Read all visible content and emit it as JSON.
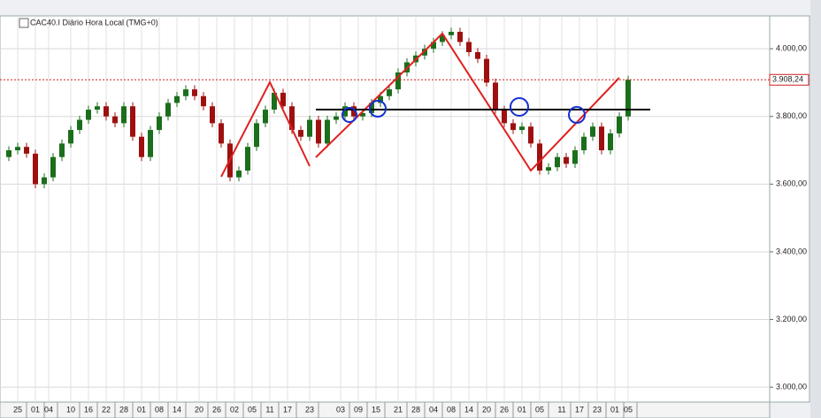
{
  "chart_data": {
    "type": "candlestick",
    "title": "CAC40.I Diário Hora Local (TMG+0)",
    "x": [
      1,
      3,
      5,
      7,
      9,
      11,
      13,
      15,
      17,
      19,
      21,
      23,
      25,
      27,
      29,
      31,
      33,
      35,
      37,
      39,
      41,
      43,
      45,
      47,
      49,
      51,
      53,
      55,
      57,
      59,
      61,
      63,
      65,
      67,
      69,
      71,
      73,
      75,
      77,
      79,
      81,
      83,
      85,
      87,
      89,
      91,
      93,
      95,
      97,
      99,
      101,
      103,
      105,
      107,
      109,
      111,
      113,
      115,
      117,
      119,
      121,
      123,
      125,
      127,
      129,
      131,
      133,
      135,
      137,
      139,
      141
    ],
    "candles": [
      [
        3680,
        3712,
        3668,
        3700
      ],
      [
        3700,
        3722,
        3688,
        3710
      ],
      [
        3710,
        3722,
        3678,
        3690
      ],
      [
        3690,
        3702,
        3588,
        3600
      ],
      [
        3600,
        3632,
        3588,
        3620
      ],
      [
        3620,
        3692,
        3608,
        3680
      ],
      [
        3680,
        3732,
        3668,
        3720
      ],
      [
        3720,
        3772,
        3708,
        3760
      ],
      [
        3760,
        3802,
        3748,
        3790
      ],
      [
        3790,
        3832,
        3778,
        3820
      ],
      [
        3820,
        3842,
        3808,
        3830
      ],
      [
        3830,
        3842,
        3788,
        3800
      ],
      [
        3800,
        3812,
        3768,
        3780
      ],
      [
        3780,
        3842,
        3768,
        3830
      ],
      [
        3830,
        3842,
        3728,
        3740
      ],
      [
        3740,
        3752,
        3668,
        3680
      ],
      [
        3680,
        3772,
        3668,
        3760
      ],
      [
        3760,
        3812,
        3748,
        3800
      ],
      [
        3800,
        3852,
        3788,
        3840
      ],
      [
        3840,
        3872,
        3828,
        3860
      ],
      [
        3860,
        3892,
        3848,
        3880
      ],
      [
        3880,
        3892,
        3848,
        3860
      ],
      [
        3860,
        3872,
        3818,
        3830
      ],
      [
        3830,
        3842,
        3768,
        3780
      ],
      [
        3780,
        3792,
        3708,
        3720
      ],
      [
        3720,
        3732,
        3608,
        3620
      ],
      [
        3620,
        3652,
        3608,
        3640
      ],
      [
        3640,
        3722,
        3628,
        3710
      ],
      [
        3710,
        3792,
        3698,
        3780
      ],
      [
        3780,
        3832,
        3768,
        3820
      ],
      [
        3820,
        3882,
        3808,
        3870
      ],
      [
        3870,
        3882,
        3818,
        3830
      ],
      [
        3830,
        3842,
        3748,
        3760
      ],
      [
        3760,
        3772,
        3728,
        3740
      ],
      [
        3740,
        3802,
        3728,
        3790
      ],
      [
        3790,
        3802,
        3708,
        3720
      ],
      [
        3720,
        3802,
        3708,
        3790
      ],
      [
        3790,
        3812,
        3778,
        3800
      ],
      [
        3800,
        3842,
        3788,
        3830
      ],
      [
        3830,
        3842,
        3788,
        3800
      ],
      [
        3800,
        3822,
        3788,
        3810
      ],
      [
        3810,
        3852,
        3798,
        3840
      ],
      [
        3840,
        3872,
        3828,
        3860
      ],
      [
        3860,
        3892,
        3848,
        3880
      ],
      [
        3880,
        3942,
        3868,
        3930
      ],
      [
        3930,
        3972,
        3918,
        3960
      ],
      [
        3960,
        3992,
        3948,
        3980
      ],
      [
        3980,
        4012,
        3968,
        4000
      ],
      [
        4000,
        4032,
        3988,
        4020
      ],
      [
        4020,
        4052,
        4008,
        4040
      ],
      [
        4040,
        4062,
        4028,
        4050
      ],
      [
        4050,
        4062,
        4008,
        4020
      ],
      [
        4020,
        4032,
        3978,
        3990
      ],
      [
        3990,
        4002,
        3958,
        3970
      ],
      [
        3970,
        3982,
        3888,
        3900
      ],
      [
        3900,
        3912,
        3808,
        3820
      ],
      [
        3820,
        3832,
        3768,
        3780
      ],
      [
        3780,
        3792,
        3748,
        3760
      ],
      [
        3760,
        3782,
        3748,
        3770
      ],
      [
        3770,
        3782,
        3708,
        3720
      ],
      [
        3720,
        3732,
        3628,
        3640
      ],
      [
        3640,
        3662,
        3628,
        3650
      ],
      [
        3650,
        3692,
        3638,
        3680
      ],
      [
        3680,
        3692,
        3648,
        3660
      ],
      [
        3660,
        3712,
        3648,
        3700
      ],
      [
        3700,
        3752,
        3688,
        3740
      ],
      [
        3740,
        3782,
        3728,
        3770
      ],
      [
        3770,
        3782,
        3688,
        3700
      ],
      [
        3700,
        3762,
        3688,
        3750
      ],
      [
        3750,
        3812,
        3738,
        3800
      ],
      [
        3800,
        3920,
        3788,
        3908.24
      ]
    ],
    "up_color": "#1b6e1b",
    "down_color": "#9e1010",
    "xlim": [
      0,
      174
    ],
    "ylim": [
      2956,
      4097
    ],
    "yticks": [
      {
        "value": 3000,
        "label": "3.000,00"
      },
      {
        "value": 3200,
        "label": "3.200,00"
      },
      {
        "value": 3400,
        "label": "3.400,00"
      },
      {
        "value": 3600,
        "label": "3.600,00"
      },
      {
        "value": 3800,
        "label": "3.800,00"
      },
      {
        "value": 4000,
        "label": "4.000,00"
      }
    ],
    "xticks": [
      {
        "value": 3,
        "label": "25"
      },
      {
        "value": 7,
        "label": "01"
      },
      {
        "value": 10,
        "label": "04"
      },
      {
        "value": 15,
        "label": "10"
      },
      {
        "value": 19,
        "label": "16"
      },
      {
        "value": 23,
        "label": "22"
      },
      {
        "value": 27,
        "label": "28"
      },
      {
        "value": 31,
        "label": "01"
      },
      {
        "value": 35,
        "label": "08"
      },
      {
        "value": 39,
        "label": "14"
      },
      {
        "value": 44,
        "label": "20"
      },
      {
        "value": 48,
        "label": "26"
      },
      {
        "value": 52,
        "label": "02"
      },
      {
        "value": 56,
        "label": "05"
      },
      {
        "value": 60,
        "label": "11"
      },
      {
        "value": 64,
        "label": "17"
      },
      {
        "value": 69,
        "label": "23"
      },
      {
        "value": 76,
        "label": "03"
      },
      {
        "value": 80,
        "label": "09"
      },
      {
        "value": 84,
        "label": "15"
      },
      {
        "value": 89,
        "label": "21"
      },
      {
        "value": 93,
        "label": "28"
      },
      {
        "value": 97,
        "label": "04"
      },
      {
        "value": 101,
        "label": "08"
      },
      {
        "value": 105,
        "label": "14"
      },
      {
        "value": 109,
        "label": "20"
      },
      {
        "value": 113,
        "label": "26"
      },
      {
        "value": 117,
        "label": "01"
      },
      {
        "value": 121,
        "label": "05"
      },
      {
        "value": 126,
        "label": "11"
      },
      {
        "value": 130,
        "label": "17"
      },
      {
        "value": 134,
        "label": "23"
      },
      {
        "value": 138,
        "label": "01"
      },
      {
        "value": 141,
        "label": "05"
      }
    ],
    "last_price": {
      "value": 3908.24,
      "label": "3.908,24"
    },
    "grid": true
  }
}
